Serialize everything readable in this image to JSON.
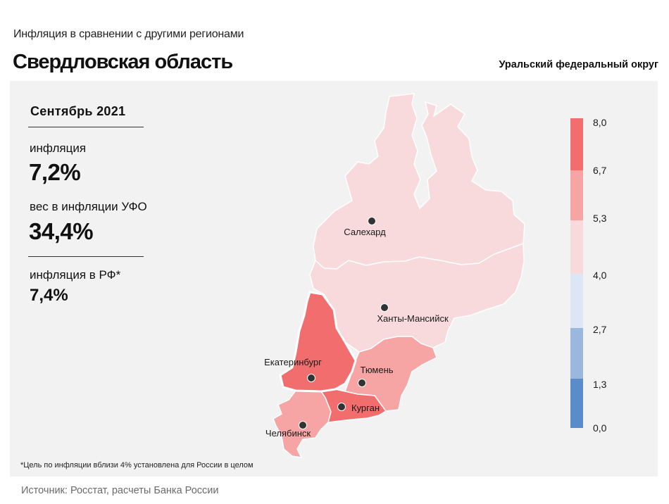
{
  "header": {
    "subtitle": "Инфляция в сравнении с другими регионами",
    "title": "Свердловская область",
    "district": "Уральский федеральный округ"
  },
  "stats": {
    "month": "Сентябрь 2021",
    "inflation_label": "инфляция",
    "inflation_value": "7,2%",
    "weight_label": "вес в инфляции УФО",
    "weight_value": "34,4%",
    "rf_label": "инфляция в РФ*",
    "rf_value": "7,4%"
  },
  "map": {
    "cities": [
      {
        "key": "salekhard",
        "name": "Салехард"
      },
      {
        "key": "khanty",
        "name": "Ханты-Мансийск"
      },
      {
        "key": "ekb",
        "name": "Екатеринбург"
      },
      {
        "key": "tyumen",
        "name": "Тюмень"
      },
      {
        "key": "kurgan",
        "name": "Курган"
      },
      {
        "key": "chelyabinsk",
        "name": "Челябинск"
      }
    ],
    "regions": [
      {
        "name": "ЯНАО",
        "fill": "#f8dadd"
      },
      {
        "name": "ХМАО",
        "fill": "#f8dadd"
      },
      {
        "name": "Свердловская область",
        "fill": "#f26d6d"
      },
      {
        "name": "Тюменская область",
        "fill": "#f6a4a4"
      },
      {
        "name": "Курганская область",
        "fill": "#f26d6d"
      },
      {
        "name": "Челябинская область",
        "fill": "#f6a4a4"
      }
    ]
  },
  "scale": {
    "labels": [
      "8,0",
      "6,7",
      "5,3",
      "4,0",
      "2,7",
      "1,3",
      "0,0"
    ],
    "colors": [
      "#f26d6d",
      "#f6a4a4",
      "#f8dadd",
      "#dde6f4",
      "#9ab7dd",
      "#5a8ccb"
    ]
  },
  "footnote": "*Цель по инфляции вблизи 4% установлена для России в целом",
  "source": "Источник: Росстат, расчеты Банка России"
}
